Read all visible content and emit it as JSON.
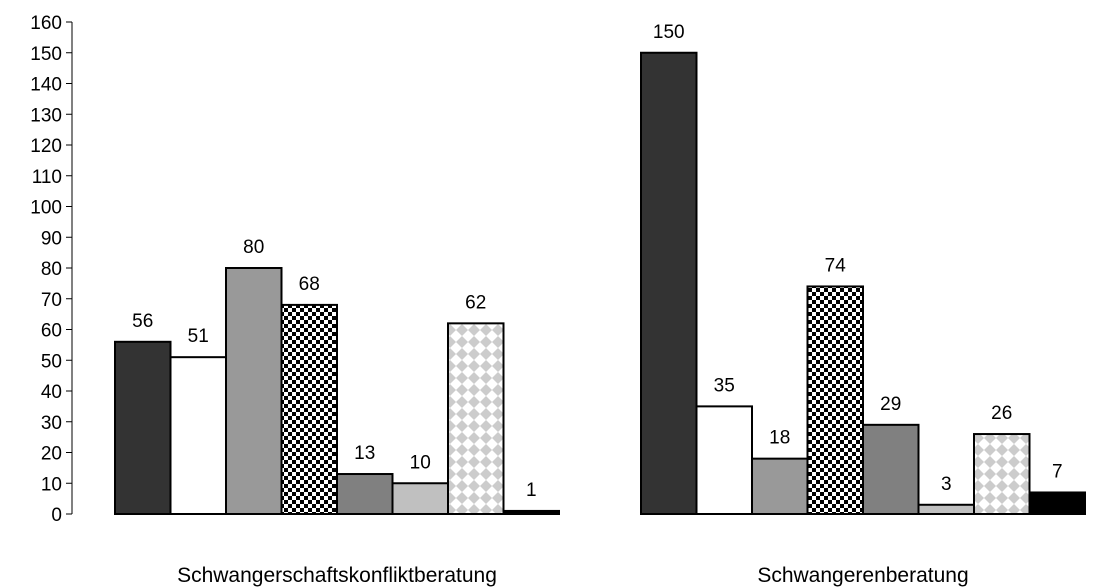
{
  "chart_data": {
    "type": "bar",
    "title": "",
    "xlabel": "",
    "ylabel": "",
    "ylim": [
      0,
      160
    ],
    "ytick_step": 10,
    "yticks": [
      "0",
      "10",
      "20",
      "30",
      "40",
      "50",
      "60",
      "70",
      "80",
      "90",
      "100",
      "110",
      "120",
      "130",
      "140",
      "150",
      "160"
    ],
    "grid": false,
    "legend": "none",
    "groups": [
      {
        "label": "Schwangerschaftskonfliktberatung",
        "values": [
          56,
          51,
          80,
          68,
          13,
          10,
          62,
          1
        ]
      },
      {
        "label": "Schwangerenberatung",
        "values": [
          150,
          35,
          18,
          74,
          29,
          3,
          26,
          7
        ]
      }
    ],
    "series_styles": [
      {
        "fill": "#333333",
        "pattern": "solid"
      },
      {
        "fill": "#ffffff",
        "pattern": "solid"
      },
      {
        "fill": "#999999",
        "pattern": "solid"
      },
      {
        "fill": "#000000",
        "pattern": "checker"
      },
      {
        "fill": "#808080",
        "pattern": "solid"
      },
      {
        "fill": "#c0c0c0",
        "pattern": "solid"
      },
      {
        "fill": "#cccccc",
        "pattern": "diamond"
      },
      {
        "fill": "#000000",
        "pattern": "solid"
      }
    ]
  }
}
